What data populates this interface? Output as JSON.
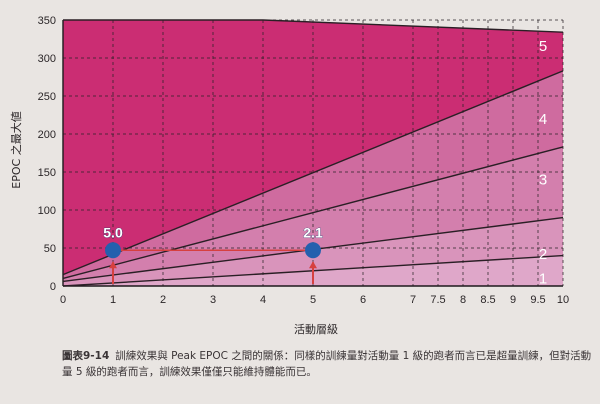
{
  "chart_data": {
    "type": "line",
    "xlabel": "活動層級",
    "ylabel": "EPOC 之最大値",
    "xlim": [
      0,
      10
    ],
    "ylim": [
      0,
      350
    ],
    "x_ticks": [
      "0",
      "1",
      "2",
      "3",
      "4",
      "5",
      "6",
      "7",
      "7.5",
      "8",
      "8.5",
      "9",
      "9.5",
      "10"
    ],
    "y_ticks": [
      0,
      50,
      100,
      150,
      200,
      250,
      300,
      350
    ],
    "zone_labels": [
      "1",
      "2",
      "3",
      "4",
      "5"
    ],
    "series": [
      {
        "points": [
          [
            0,
            0
          ],
          [
            10,
            40
          ]
        ]
      },
      {
        "points": [
          [
            0,
            6
          ],
          [
            10,
            90
          ]
        ]
      },
      {
        "points": [
          [
            0,
            10
          ],
          [
            10,
            183
          ]
        ]
      },
      {
        "points": [
          [
            0,
            15
          ],
          [
            10,
            283
          ]
        ]
      },
      {
        "points": [
          [
            0,
            350
          ],
          [
            4,
            350
          ],
          [
            10,
            334
          ]
        ]
      }
    ],
    "highlight_points": [
      {
        "x": 1,
        "y": 47,
        "label": "5.0"
      },
      {
        "x": 5,
        "y": 47,
        "label": "2.1"
      }
    ],
    "colors": {
      "zone_1": "#dfa7c9",
      "zone_2": "#d994bb",
      "zone_3": "#d37fad",
      "zone_4": "#cf6b9f",
      "zone_5": "#cb2d73",
      "point": "#2460ae",
      "reference_line": "#d6403f"
    }
  },
  "caption": {
    "tag": "圖表9-14",
    "text": "訓練效果與 Peak EPOC 之間的關係：同樣的訓練量對活動量 1 級的跑者而言已是超量訓練，但對活動量 5 級的跑者而言，訓練效果僅僅只能維持體能而已。"
  }
}
